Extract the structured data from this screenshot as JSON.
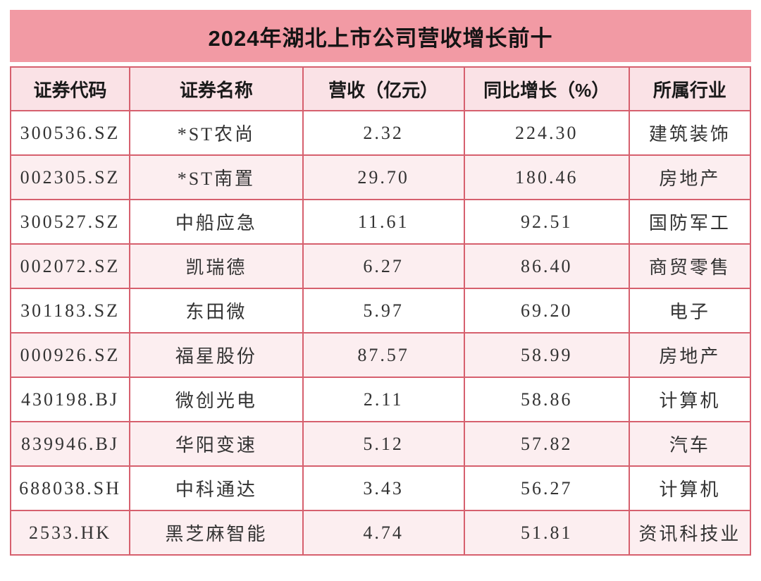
{
  "title": "2024年湖北上市公司营收增长前十",
  "colors": {
    "title_bg": "#F29AA4",
    "header_bg": "#FAE2E6",
    "row_even_bg": "#FCEEF0",
    "row_odd_bg": "#FFFFFF",
    "border": "#D6606E",
    "title_text": "#141414",
    "cell_text": "#333333"
  },
  "chart_data": {
    "type": "table",
    "title": "2024年湖北上市公司营收增长前十",
    "columns": [
      "证券代码",
      "证券名称",
      "营收（亿元）",
      "同比增长（%）",
      "所属行业"
    ],
    "rows": [
      [
        "300536.SZ",
        "*ST农尚",
        "2.32",
        "224.30",
        "建筑装饰"
      ],
      [
        "002305.SZ",
        "*ST南置",
        "29.70",
        "180.46",
        "房地产"
      ],
      [
        "300527.SZ",
        "中船应急",
        "11.61",
        "92.51",
        "国防军工"
      ],
      [
        "002072.SZ",
        "凯瑞德",
        "6.27",
        "86.40",
        "商贸零售"
      ],
      [
        "301183.SZ",
        "东田微",
        "5.97",
        "69.20",
        "电子"
      ],
      [
        "000926.SZ",
        "福星股份",
        "87.57",
        "58.99",
        "房地产"
      ],
      [
        "430198.BJ",
        "微创光电",
        "2.11",
        "58.86",
        "计算机"
      ],
      [
        "839946.BJ",
        "华阳变速",
        "5.12",
        "57.82",
        "汽车"
      ],
      [
        "688038.SH",
        "中科通达",
        "3.43",
        "56.27",
        "计算机"
      ],
      [
        "2533.HK",
        "黑芝麻智能",
        "4.74",
        "51.81",
        "资讯科技业"
      ]
    ]
  }
}
